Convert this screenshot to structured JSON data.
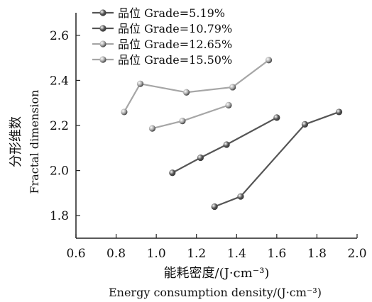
{
  "chart_data": {
    "type": "line",
    "title": "",
    "xlabel_cn": "能耗密度/(J·cm⁻³)",
    "xlabel_en": "Energy consumption density/(J·cm⁻³)",
    "ylabel_cn": "分形维数",
    "ylabel_en": "Fractal dimension",
    "xlim": [
      0.6,
      2.0
    ],
    "ylim": [
      1.7,
      2.7
    ],
    "xticks": [
      "0.6",
      "0.8",
      "1.0",
      "1.2",
      "1.4",
      "1.6",
      "1.8",
      "2.0"
    ],
    "yticks": [
      "1.8",
      "2.0",
      "2.2",
      "2.4",
      "2.6"
    ],
    "legend_position": "top-left",
    "series": [
      {
        "name": "品位 Grade=5.19%",
        "color": "#555555",
        "points": [
          [
            1.29,
            1.84
          ],
          [
            1.42,
            1.885
          ],
          [
            1.74,
            2.205
          ],
          [
            1.91,
            2.26
          ]
        ]
      },
      {
        "name": "品位 Grade=10.79%",
        "color": "#555555",
        "points": [
          [
            1.08,
            1.99
          ],
          [
            1.22,
            2.057
          ],
          [
            1.35,
            2.115
          ],
          [
            1.6,
            2.235
          ]
        ]
      },
      {
        "name": "品位 Grade=12.65%",
        "color": "#a6a6a6",
        "points": [
          [
            0.98,
            2.187
          ],
          [
            1.13,
            2.22
          ],
          [
            1.36,
            2.29
          ]
        ]
      },
      {
        "name": "品位 Grade=15.50%",
        "color": "#a6a6a6",
        "points": [
          [
            0.84,
            2.26
          ],
          [
            0.92,
            2.385
          ],
          [
            1.15,
            2.347
          ],
          [
            1.38,
            2.37
          ],
          [
            1.56,
            2.49
          ]
        ]
      }
    ]
  }
}
